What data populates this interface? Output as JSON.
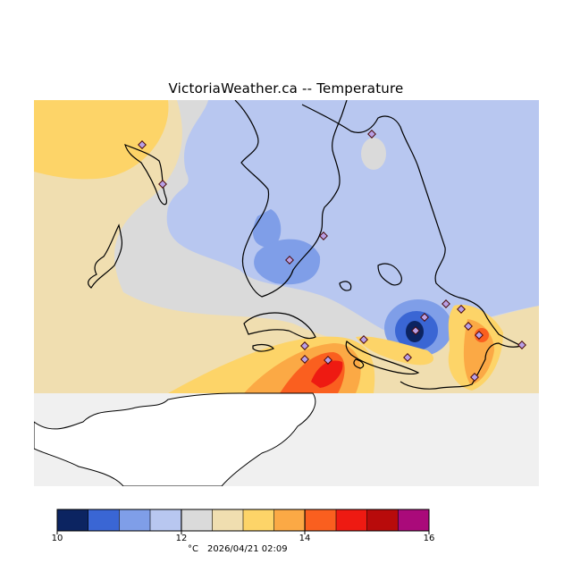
{
  "page": {
    "title": "VictoriaWeather.ca -- Temperature"
  },
  "legend": {
    "colors": [
      "#0c2461",
      "#3a66d4",
      "#7f9ee8",
      "#b8c7f0",
      "#dadada",
      "#f0deb0",
      "#fdd468",
      "#fba945",
      "#fa5f1f",
      "#ee1a12",
      "#b80b0b",
      "#aa0a7a"
    ],
    "ticks": [
      "10",
      "12",
      "14",
      "16"
    ],
    "unit": "°C",
    "timestamp": "2026/04/21 02:09"
  },
  "map": {
    "water_color": "#f0f0f0",
    "land_color": "#ffffff",
    "station_marker": "diamond-icon"
  }
}
